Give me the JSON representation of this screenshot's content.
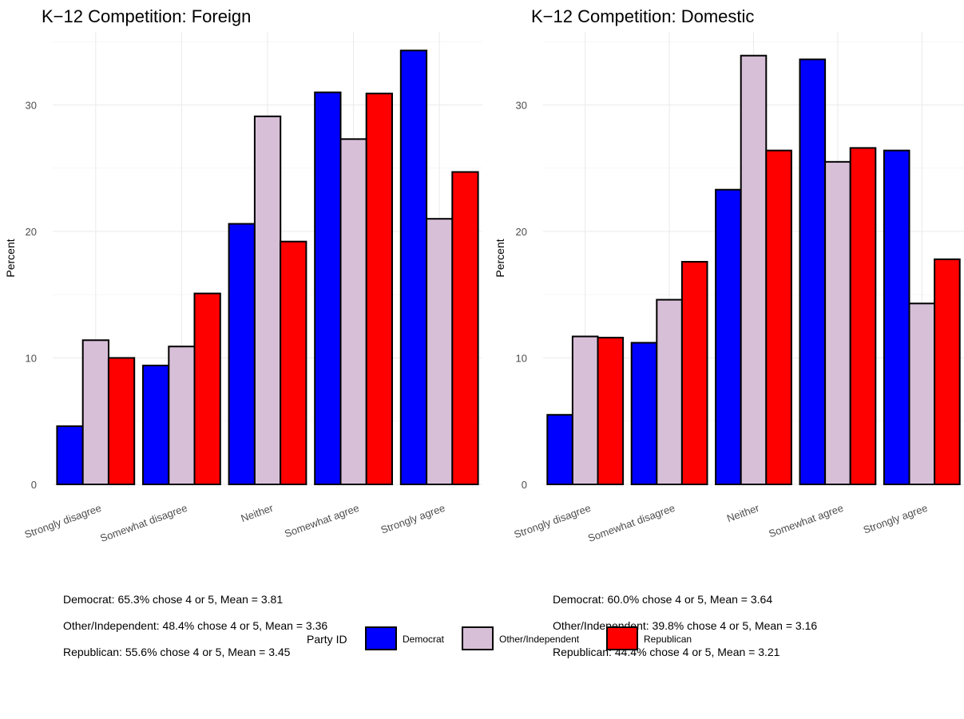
{
  "chart_data": [
    {
      "type": "bar",
      "title": "K−12 Competition: Foreign",
      "xlabel": "",
      "ylabel": "Percent",
      "ylim": [
        0,
        35
      ],
      "yticks": [
        0,
        10,
        20,
        30
      ],
      "grid": true,
      "categories": [
        "Strongly disagree",
        "Somewhat disagree",
        "Neither",
        "Somewhat agree",
        "Strongly agree"
      ],
      "series": [
        {
          "name": "Democrat",
          "color": "#0000ff",
          "values": [
            4.6,
            9.4,
            20.6,
            31.0,
            34.3
          ]
        },
        {
          "name": "Other/Independent",
          "color": "#d8bfd8",
          "values": [
            11.4,
            10.9,
            29.1,
            27.3,
            21.0
          ]
        },
        {
          "name": "Republican",
          "color": "#ff0000",
          "values": [
            10.0,
            15.1,
            19.2,
            30.9,
            24.7
          ]
        }
      ],
      "annotations": [
        "Democrat: 65.3% chose 4 or 5, Mean = 3.81",
        "Other/Independent: 48.4% chose 4 or 5, Mean = 3.36",
        "Republican: 55.6% chose 4 or 5, Mean = 3.45"
      ]
    },
    {
      "type": "bar",
      "title": "K−12 Competition: Domestic",
      "xlabel": "",
      "ylabel": "Percent",
      "ylim": [
        0,
        35
      ],
      "yticks": [
        0,
        10,
        20,
        30
      ],
      "grid": true,
      "categories": [
        "Strongly disagree",
        "Somewhat disagree",
        "Neither",
        "Somewhat agree",
        "Strongly agree"
      ],
      "series": [
        {
          "name": "Democrat",
          "color": "#0000ff",
          "values": [
            5.5,
            11.2,
            23.3,
            33.6,
            26.4
          ]
        },
        {
          "name": "Other/Independent",
          "color": "#d8bfd8",
          "values": [
            11.7,
            14.6,
            33.9,
            25.5,
            14.3
          ]
        },
        {
          "name": "Republican",
          "color": "#ff0000",
          "values": [
            11.6,
            17.6,
            26.4,
            26.6,
            17.8
          ]
        }
      ],
      "annotations": [
        "Democrat: 60.0% chose 4 or 5, Mean = 3.64",
        "Other/Independent: 39.8% chose 4 or 5, Mean = 3.16",
        "Republican: 44.4% chose 4 or 5, Mean = 3.21"
      ]
    }
  ],
  "legend": {
    "title": "Party ID",
    "position": "bottom",
    "items": [
      {
        "label": "Democrat",
        "color": "#0000ff"
      },
      {
        "label": "Other/Independent",
        "color": "#d8bfd8"
      },
      {
        "label": "Republican",
        "color": "#ff0000"
      }
    ]
  }
}
